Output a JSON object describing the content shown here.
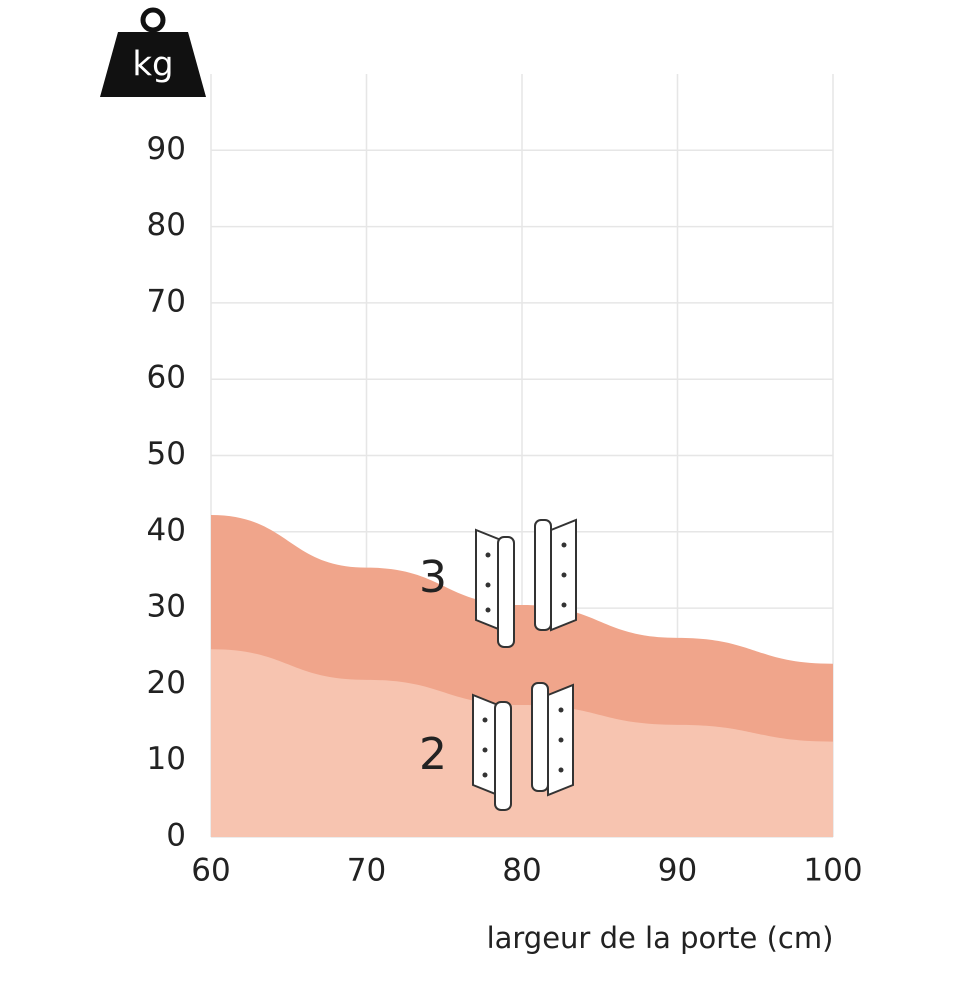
{
  "chart_data": {
    "type": "area",
    "unit": "kg",
    "x_label": "largeur de la porte (cm)",
    "x": [
      60,
      70,
      80,
      90,
      100
    ],
    "series": [
      {
        "name": "3",
        "color": "#f0a58b",
        "values": [
          42.2,
          35.3,
          30.4,
          26.1,
          22.7
        ]
      },
      {
        "name": "2",
        "color": "#f7c4b0",
        "values": [
          24.6,
          20.6,
          17.3,
          14.7,
          12.5
        ]
      }
    ],
    "xlim": [
      60,
      100
    ],
    "ylim": [
      0,
      100
    ],
    "xticks": [
      60,
      70,
      80,
      90,
      100
    ],
    "yticks": [
      0,
      10,
      20,
      30,
      40,
      50,
      60,
      70,
      80,
      90
    ],
    "grid": true
  }
}
